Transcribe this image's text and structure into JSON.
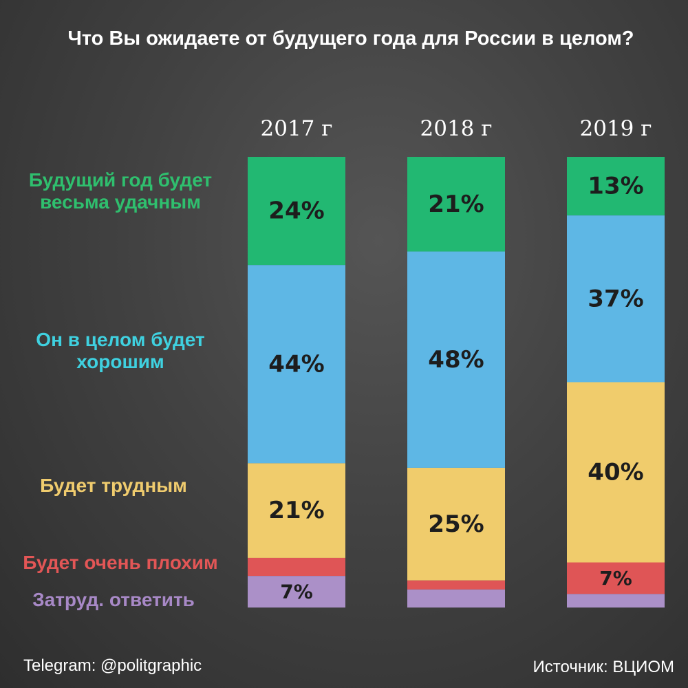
{
  "title": "Что Вы ожидаете от будущего года для России в целом?",
  "legend": [
    {
      "label": "Будущий год будет весьма удачным",
      "color": "#2fbf6e"
    },
    {
      "label": "Он в целом будет хорошим",
      "color": "#3fd1e0"
    },
    {
      "label": "Будет трудным",
      "color": "#f0cc6e"
    },
    {
      "label": "Будет очень плохим",
      "color": "#e35656"
    },
    {
      "label": "Затруд. ответить",
      "color": "#a889c7"
    }
  ],
  "chart_data": {
    "type": "bar",
    "stacked": true,
    "categories": [
      "2017 г",
      "2018 г",
      "2019 г"
    ],
    "series": [
      {
        "name": "Будущий год будет весьма удачным",
        "color": "#22b872",
        "values": [
          24,
          21,
          13
        ],
        "labels": [
          "24%",
          "21%",
          "13%"
        ]
      },
      {
        "name": "Он в целом будет хорошим",
        "color": "#5eb7e5",
        "values": [
          44,
          48,
          37
        ],
        "labels": [
          "44%",
          "48%",
          "37%"
        ]
      },
      {
        "name": "Будет трудным",
        "color": "#f0cc6c",
        "values": [
          21,
          25,
          40
        ],
        "labels": [
          "21%",
          "25%",
          "40%"
        ]
      },
      {
        "name": "Будет очень плохим",
        "color": "#df5556",
        "values": [
          4,
          2,
          7
        ],
        "labels": [
          "",
          "",
          "7%"
        ]
      },
      {
        "name": "Затруд. ответить",
        "color": "#ab90c8",
        "values": [
          7,
          4,
          3
        ],
        "labels": [
          "7%",
          "",
          ""
        ]
      }
    ],
    "ylim": [
      0,
      100
    ]
  },
  "footer": {
    "left": "Telegram: @politgraphic",
    "right": "Источник: ВЦИОМ"
  }
}
